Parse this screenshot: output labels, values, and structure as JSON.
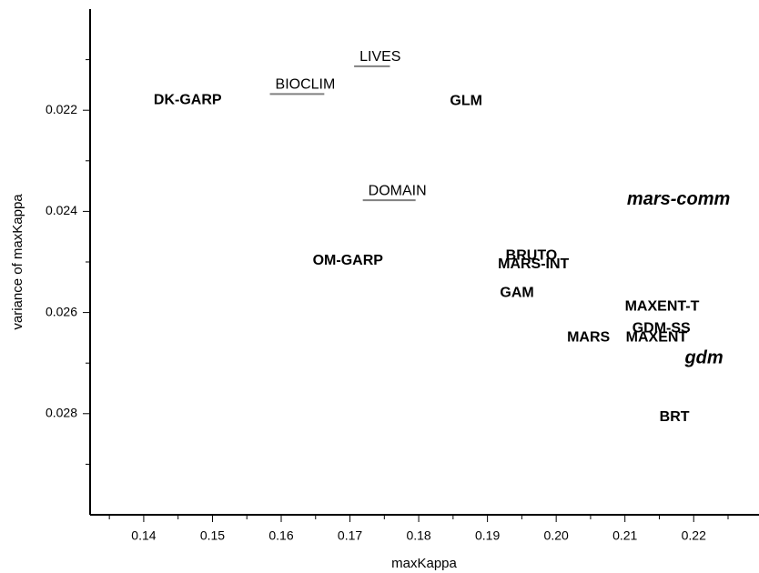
{
  "chart_data": {
    "type": "scatter",
    "x_label": "maxKappa",
    "y_label": "variance of maxKappa",
    "xlim": [
      0.1322,
      0.2295
    ],
    "ylim": [
      0.02,
      0.03
    ],
    "y_reversed": true,
    "xticks": [
      0.14,
      0.15,
      0.16,
      0.17,
      0.18,
      0.19,
      {
        "value": 0.2,
        "label": "0.20"
      },
      0.21,
      0.22
    ],
    "yticks": [
      0.022,
      0.024,
      0.026,
      0.028
    ],
    "x_minor_ticks": [
      0.135,
      0.145,
      0.155,
      0.165,
      0.175,
      0.185,
      0.195,
      0.205,
      0.215,
      0.225
    ],
    "y_minor_ticks": [
      0.021,
      0.023,
      0.025,
      0.027,
      0.029
    ],
    "points": [
      {
        "label": "DK-GARP",
        "x": 0.1464,
        "y": 0.0218,
        "color": "#000000",
        "style": "bold"
      },
      {
        "label": "BIOCLIM",
        "x": 0.1635,
        "y": 0.0215,
        "color": "#808080",
        "style": "underlined"
      },
      {
        "label": "LIVES",
        "x": 0.1744,
        "y": 0.02095,
        "color": "#808080",
        "style": "underlined"
      },
      {
        "label": "GLM",
        "x": 0.1869,
        "y": 0.02182,
        "color": "#000000",
        "style": "bold"
      },
      {
        "label": "DOMAIN",
        "x": 0.1769,
        "y": 0.0236,
        "color": "#808080",
        "style": "underlined"
      },
      {
        "label": "mars-comm",
        "x": 0.2178,
        "y": 0.02377,
        "color": "#000000",
        "style": "bold-italic"
      },
      {
        "label": "OM-GARP",
        "x": 0.1697,
        "y": 0.02498,
        "color": "#000000",
        "style": "bold"
      },
      {
        "label": "BRUTO",
        "x": 0.1964,
        "y": 0.02488,
        "color": "#000000",
        "style": "bold"
      },
      {
        "label": "MARS-INT",
        "x": 0.1967,
        "y": 0.02505,
        "color": "#000000",
        "style": "bold"
      },
      {
        "label": "GAM",
        "x": 0.1943,
        "y": 0.02562,
        "color": "#000000",
        "style": "bold"
      },
      {
        "label": "MAXENT-T",
        "x": 0.2154,
        "y": 0.02589,
        "color": "#000000",
        "style": "bold"
      },
      {
        "label": "GDM-SS",
        "x": 0.2153,
        "y": 0.02632,
        "color": "#000000",
        "style": "bold"
      },
      {
        "label": "MARS",
        "x": 0.2047,
        "y": 0.0265,
        "color": "#000000",
        "style": "bold"
      },
      {
        "label": "MAXENT",
        "x": 0.2146,
        "y": 0.0265,
        "color": "#000000",
        "style": "bold"
      },
      {
        "label": "gdm",
        "x": 0.2215,
        "y": 0.02691,
        "color": "#000000",
        "style": "bold-italic"
      },
      {
        "label": "BRT",
        "x": 0.2172,
        "y": 0.02807,
        "color": "#000000",
        "style": "bold"
      }
    ]
  }
}
